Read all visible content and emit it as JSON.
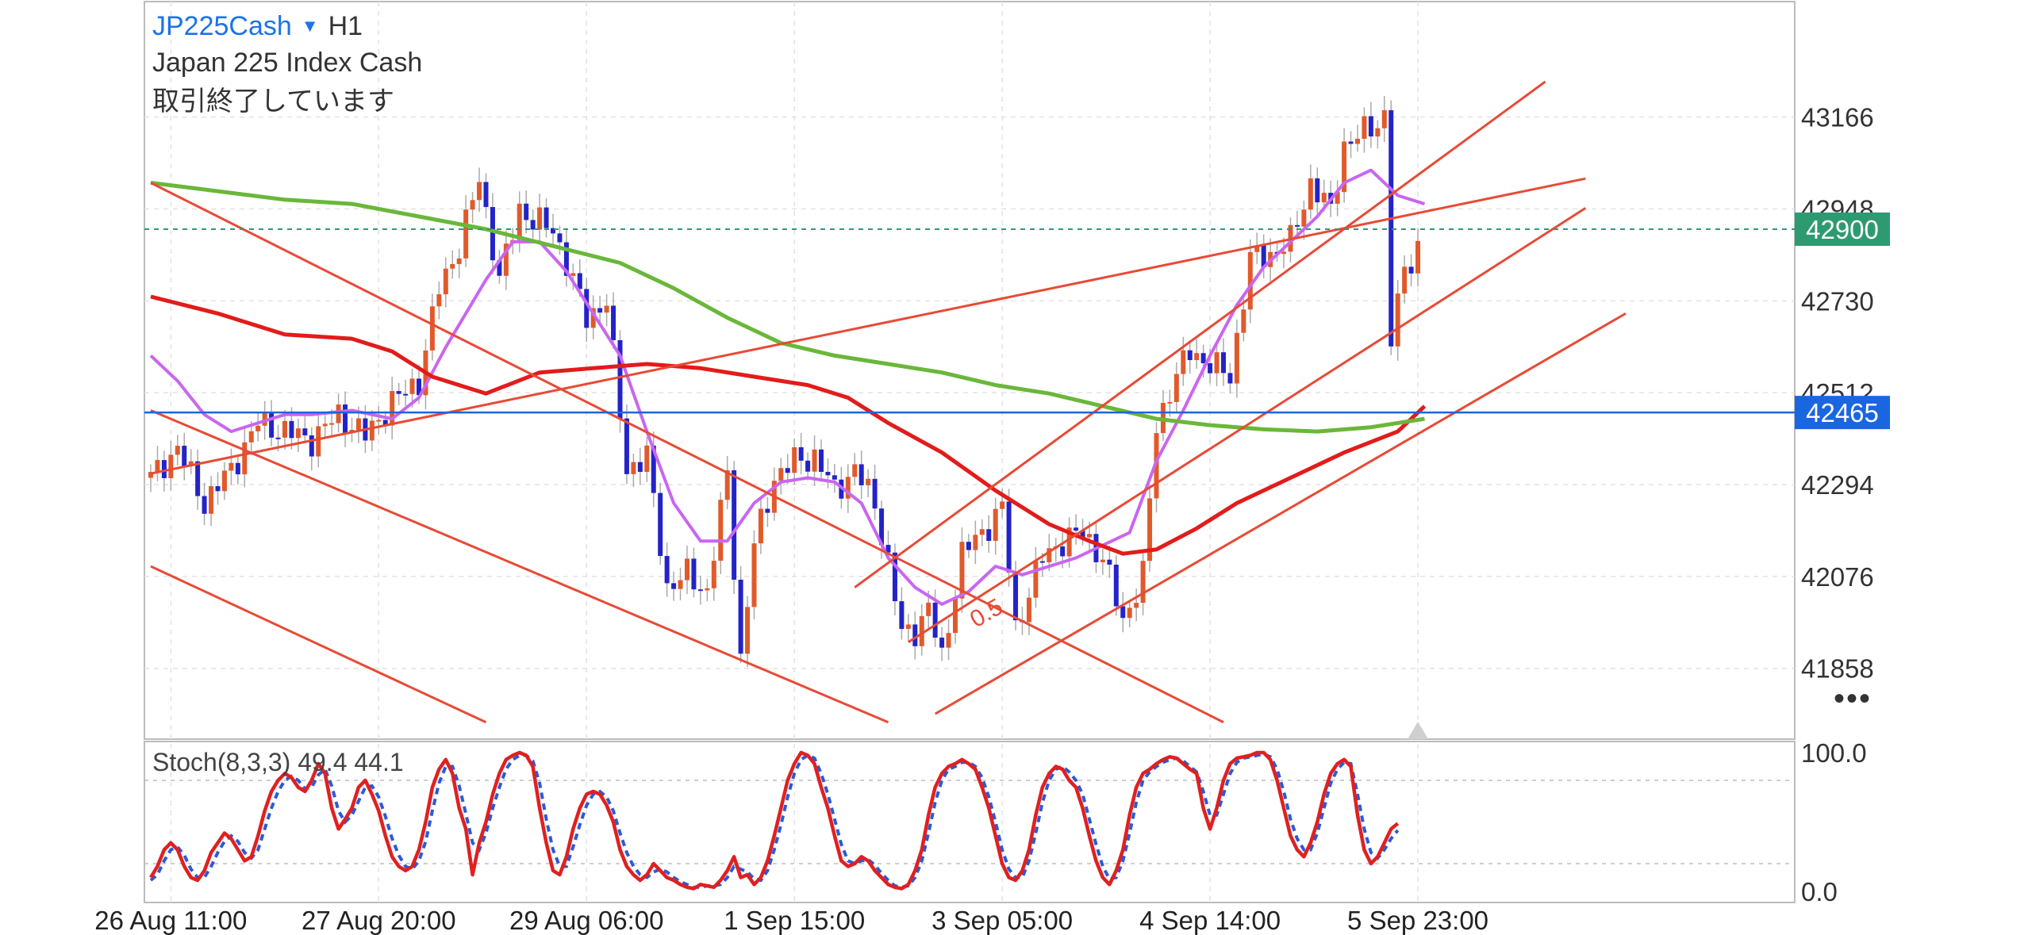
{
  "header": {
    "symbol": "JP225Cash",
    "dropdown_icon": "caret-down-icon",
    "timeframe": "H1",
    "full_name": "Japan 225 Index Cash",
    "status": "取引終了しています"
  },
  "colors": {
    "bull": "#e05a2c",
    "bear": "#2323c8",
    "ma_fast": "#c966f0",
    "ma_mid": "#e31b1b",
    "ma_slow": "#6ab73a",
    "trendline": "#e84a36",
    "last_price_badge": "#2e9a72",
    "hline_badge": "#1a66e0",
    "stoch_k": "#e02020",
    "stoch_d": "#2a5ad8"
  },
  "more_icon": "more-dots-icon",
  "chart_data": [
    {
      "type": "candlestick",
      "y_ticks": [
        43166,
        42948,
        42730,
        42512,
        42294,
        42076,
        41858
      ],
      "ylim": [
        41690,
        43440
      ],
      "x_ticks": [
        "26 Aug 11:00",
        "27 Aug 20:00",
        "29 Aug 06:00",
        "1 Sep 15:00",
        "3 Sep 05:00",
        "4 Sep 14:00",
        "5 Sep 23:00"
      ],
      "x_tick_index": [
        3,
        34,
        65,
        96,
        127,
        158,
        189
      ],
      "last_price": {
        "value": 42900,
        "label": "42900"
      },
      "horizontal_line": {
        "value": 42465,
        "label": "42465"
      },
      "fib_label": "0.5",
      "grid": true,
      "close_path": [
        [
          0,
          42310
        ],
        [
          4,
          42380
        ],
        [
          8,
          42250
        ],
        [
          12,
          42330
        ],
        [
          16,
          42440
        ],
        [
          20,
          42420
        ],
        [
          24,
          42400
        ],
        [
          28,
          42460
        ],
        [
          32,
          42410
        ],
        [
          36,
          42490
        ],
        [
          40,
          42540
        ],
        [
          43,
          42760
        ],
        [
          46,
          42860
        ],
        [
          49,
          43020
        ],
        [
          52,
          42780
        ],
        [
          55,
          42950
        ],
        [
          57,
          42920
        ],
        [
          60,
          42900
        ],
        [
          62,
          42820
        ],
        [
          65,
          42690
        ],
        [
          68,
          42730
        ],
        [
          71,
          42330
        ],
        [
          74,
          42360
        ],
        [
          77,
          42050
        ],
        [
          80,
          42080
        ],
        [
          83,
          42040
        ],
        [
          86,
          42320
        ],
        [
          88,
          41880
        ],
        [
          90,
          42150
        ],
        [
          93,
          42310
        ],
        [
          96,
          42350
        ],
        [
          99,
          42360
        ],
        [
          102,
          42280
        ],
        [
          105,
          42330
        ],
        [
          108,
          42250
        ],
        [
          110,
          42110
        ],
        [
          112,
          41940
        ],
        [
          114,
          41950
        ],
        [
          116,
          42000
        ],
        [
          118,
          41880
        ],
        [
          121,
          42130
        ],
        [
          124,
          42180
        ],
        [
          127,
          42240
        ],
        [
          129,
          41950
        ],
        [
          131,
          42040
        ],
        [
          133,
          42120
        ],
        [
          136,
          42160
        ],
        [
          139,
          42180
        ],
        [
          142,
          42120
        ],
        [
          145,
          41970
        ],
        [
          148,
          42080
        ],
        [
          150,
          42430
        ],
        [
          152,
          42520
        ],
        [
          155,
          42610
        ],
        [
          158,
          42580
        ],
        [
          161,
          42550
        ],
        [
          164,
          42830
        ],
        [
          167,
          42840
        ],
        [
          170,
          42870
        ],
        [
          173,
          43010
        ],
        [
          176,
          42940
        ],
        [
          178,
          43100
        ],
        [
          180,
          43120
        ],
        [
          182,
          43140
        ],
        [
          184,
          43170
        ],
        [
          185,
          42640
        ],
        [
          187,
          42800
        ],
        [
          189,
          42860
        ]
      ],
      "indicators": [
        {
          "points": [
            [
              0,
              42600
            ],
            [
              4,
              42540
            ],
            [
              8,
              42460
            ],
            [
              12,
              42420
            ],
            [
              16,
              42440
            ],
            [
              20,
              42460
            ],
            [
              24,
              42460
            ],
            [
              30,
              42470
            ],
            [
              36,
              42450
            ],
            [
              40,
              42500
            ],
            [
              44,
              42620
            ],
            [
              50,
              42780
            ],
            [
              54,
              42870
            ],
            [
              58,
              42870
            ],
            [
              62,
              42800
            ],
            [
              66,
              42700
            ],
            [
              70,
              42600
            ],
            [
              74,
              42420
            ],
            [
              78,
              42250
            ],
            [
              82,
              42160
            ],
            [
              86,
              42160
            ],
            [
              90,
              42250
            ],
            [
              94,
              42300
            ],
            [
              98,
              42310
            ],
            [
              102,
              42300
            ],
            [
              106,
              42250
            ],
            [
              110,
              42120
            ],
            [
              114,
              42050
            ],
            [
              118,
              42010
            ],
            [
              122,
              42040
            ],
            [
              126,
              42100
            ],
            [
              130,
              42080
            ],
            [
              134,
              42100
            ],
            [
              138,
              42120
            ],
            [
              142,
              42150
            ],
            [
              146,
              42180
            ],
            [
              150,
              42350
            ],
            [
              154,
              42470
            ],
            [
              158,
              42600
            ],
            [
              162,
              42720
            ],
            [
              166,
              42810
            ],
            [
              170,
              42870
            ],
            [
              174,
              42930
            ],
            [
              178,
              43010
            ],
            [
              182,
              43040
            ],
            [
              186,
              42980
            ],
            [
              190,
              42960
            ]
          ]
        },
        {
          "points": [
            [
              0,
              42740
            ],
            [
              10,
              42700
            ],
            [
              20,
              42650
            ],
            [
              30,
              42640
            ],
            [
              36,
              42610
            ],
            [
              42,
              42550
            ],
            [
              50,
              42510
            ],
            [
              58,
              42560
            ],
            [
              66,
              42570
            ],
            [
              74,
              42580
            ],
            [
              82,
              42570
            ],
            [
              90,
              42550
            ],
            [
              98,
              42530
            ],
            [
              104,
              42500
            ],
            [
              110,
              42440
            ],
            [
              118,
              42370
            ],
            [
              126,
              42280
            ],
            [
              134,
              42200
            ],
            [
              140,
              42160
            ],
            [
              145,
              42130
            ],
            [
              150,
              42140
            ],
            [
              156,
              42190
            ],
            [
              162,
              42250
            ],
            [
              170,
              42310
            ],
            [
              178,
              42370
            ],
            [
              186,
              42420
            ],
            [
              190,
              42480
            ]
          ]
        },
        {
          "points": [
            [
              0,
              43010
            ],
            [
              10,
              42990
            ],
            [
              20,
              42970
            ],
            [
              30,
              42960
            ],
            [
              40,
              42930
            ],
            [
              50,
              42900
            ],
            [
              60,
              42860
            ],
            [
              70,
              42820
            ],
            [
              78,
              42760
            ],
            [
              86,
              42690
            ],
            [
              94,
              42630
            ],
            [
              102,
              42600
            ],
            [
              110,
              42580
            ],
            [
              118,
              42560
            ],
            [
              126,
              42530
            ],
            [
              134,
              42510
            ],
            [
              142,
              42480
            ],
            [
              150,
              42450
            ],
            [
              158,
              42435
            ],
            [
              166,
              42425
            ],
            [
              174,
              42420
            ],
            [
              182,
              42430
            ],
            [
              190,
              42450
            ]
          ]
        }
      ],
      "trendlines": [
        {
          "from": [
            0,
            43010
          ],
          "to": [
            160,
            41730
          ]
        },
        {
          "from": [
            0,
            42470
          ],
          "to": [
            110,
            41730
          ]
        },
        {
          "from": [
            0,
            42100
          ],
          "to": [
            50,
            41730
          ]
        },
        {
          "from": [
            0,
            42320
          ],
          "to": [
            214,
            43020
          ]
        },
        {
          "from": [
            105,
            42050
          ],
          "to": [
            208,
            43250
          ]
        },
        {
          "from": [
            113,
            41920
          ],
          "to": [
            214,
            42950
          ]
        },
        {
          "from": [
            117,
            41750
          ],
          "to": [
            220,
            42700
          ]
        }
      ]
    },
    {
      "type": "line",
      "title": "Stoch(8,3,3) 49.4 44.1",
      "y_ticks": [
        "100.0",
        "0.0"
      ],
      "ylim": [
        -8,
        108
      ],
      "levels": [
        80,
        20
      ],
      "series": [
        {
          "values": [
            10,
            18,
            30,
            35,
            30,
            18,
            10,
            8,
            15,
            28,
            35,
            42,
            38,
            30,
            22,
            25,
            40,
            58,
            72,
            80,
            85,
            82,
            75,
            72,
            80,
            92,
            85,
            60,
            45,
            52,
            60,
            75,
            80,
            70,
            58,
            40,
            25,
            18,
            15,
            18,
            30,
            50,
            75,
            88,
            95,
            85,
            60,
            45,
            12,
            35,
            50,
            70,
            85,
            95,
            98,
            100,
            98,
            90,
            60,
            35,
            15,
            12,
            25,
            45,
            60,
            70,
            72,
            70,
            62,
            50,
            30,
            18,
            12,
            8,
            12,
            20,
            15,
            10,
            8,
            5,
            3,
            2,
            5,
            4,
            3,
            8,
            15,
            25,
            10,
            12,
            5,
            10,
            22,
            40,
            60,
            80,
            92,
            100,
            98,
            92,
            75,
            60,
            40,
            22,
            18,
            20,
            25,
            22,
            15,
            10,
            5,
            3,
            2,
            5,
            15,
            30,
            55,
            75,
            85,
            90,
            92,
            95,
            92,
            88,
            75,
            60,
            40,
            20,
            10,
            8,
            15,
            30,
            55,
            75,
            85,
            90,
            88,
            80,
            75,
            60,
            40,
            22,
            10,
            5,
            15,
            30,
            55,
            75,
            85,
            88,
            92,
            95,
            97,
            96,
            92,
            88,
            85,
            60,
            45,
            60,
            80,
            92,
            96,
            97,
            98,
            100,
            100,
            95,
            80,
            60,
            40,
            30,
            25,
            35,
            50,
            70,
            85,
            92,
            95,
            90,
            55,
            30,
            20,
            25,
            35,
            45,
            49
          ]
        },
        {
          "values": [
            8,
            12,
            22,
            30,
            32,
            26,
            16,
            10,
            10,
            18,
            28,
            36,
            40,
            36,
            28,
            24,
            30,
            45,
            60,
            72,
            80,
            83,
            80,
            74,
            75,
            84,
            88,
            76,
            58,
            50,
            55,
            65,
            75,
            76,
            68,
            54,
            38,
            26,
            18,
            16,
            22,
            36,
            58,
            78,
            90,
            90,
            76,
            56,
            35,
            30,
            42,
            60,
            75,
            88,
            95,
            98,
            98,
            94,
            78,
            52,
            30,
            18,
            18,
            32,
            48,
            62,
            70,
            72,
            68,
            58,
            42,
            28,
            18,
            12,
            10,
            14,
            16,
            14,
            10,
            7,
            5,
            3,
            3,
            4,
            4,
            5,
            10,
            18,
            16,
            14,
            9,
            8,
            15,
            30,
            48,
            68,
            85,
            95,
            98,
            96,
            85,
            70,
            52,
            34,
            22,
            20,
            22,
            23,
            19,
            13,
            8,
            4,
            3,
            4,
            10,
            22,
            42,
            64,
            80,
            88,
            90,
            93,
            93,
            90,
            82,
            68,
            50,
            30,
            16,
            10,
            10,
            22,
            42,
            64,
            80,
            88,
            90,
            86,
            80,
            70,
            52,
            34,
            18,
            9,
            10,
            22,
            42,
            64,
            80,
            86,
            90,
            93,
            95,
            96,
            94,
            90,
            86,
            72,
            55,
            55,
            70,
            85,
            93,
            96,
            97,
            98,
            99,
            97,
            88,
            72,
            52,
            38,
            30,
            30,
            42,
            60,
            78,
            88,
            93,
            92,
            70,
            45,
            28,
            24,
            30,
            38,
            44
          ]
        }
      ]
    }
  ]
}
